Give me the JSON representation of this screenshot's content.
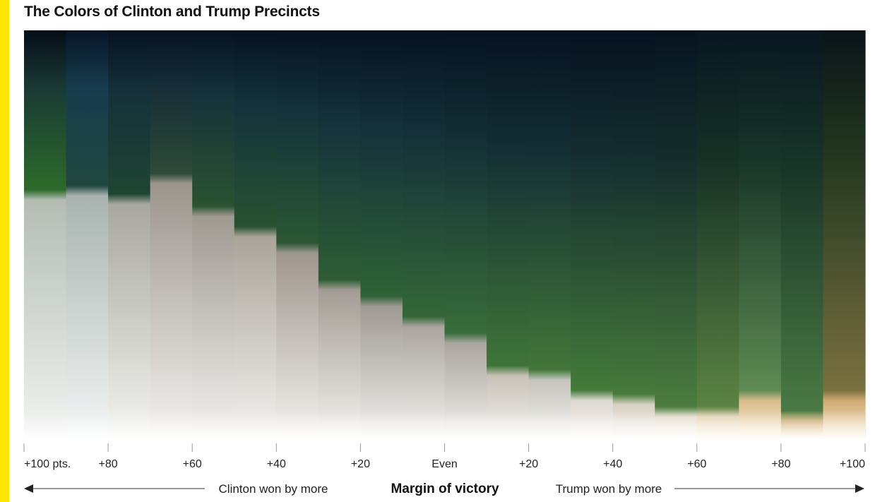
{
  "title": "The Colors of Clinton and Trump Precincts",
  "colors": {
    "accent_bar": "#ffe600",
    "axis": "#999999",
    "arrow": "#333333"
  },
  "chart_data": {
    "type": "heatmap",
    "title": "The Colors of Clinton and Trump Precincts",
    "xlabel": "Margin of victory",
    "direction_labels": {
      "left": "Clinton won by more",
      "right": "Trump won by more"
    },
    "ticks": [
      {
        "label": "+100 pts.",
        "margin": -100
      },
      {
        "label": "+80",
        "margin": -80
      },
      {
        "label": "+60",
        "margin": -60
      },
      {
        "label": "+40",
        "margin": -40
      },
      {
        "label": "+20",
        "margin": -20
      },
      {
        "label": "Even",
        "margin": 0
      },
      {
        "label": "+20",
        "margin": 20
      },
      {
        "label": "+40",
        "margin": 40
      },
      {
        "label": "+60",
        "margin": 60
      },
      {
        "label": "+80",
        "margin": 80
      },
      {
        "label": "+100",
        "margin": 100
      }
    ],
    "xlim": [
      -100,
      100
    ],
    "columns": [
      {
        "margin_from": -100,
        "margin_to": -90,
        "light_share": 0.59,
        "top": "#050d18",
        "sky": "#1a3a34",
        "vegetation": "#2d6a2a",
        "ground": "#b4bcb4",
        "base": "#f2f4f2"
      },
      {
        "margin_from": -90,
        "margin_to": -80,
        "light_share": 0.6,
        "top": "#071526",
        "sky": "#173c4e",
        "vegetation": "#20473e",
        "ground": "#a9b4b0",
        "base": "#f3f5f5"
      },
      {
        "margin_from": -80,
        "margin_to": -70,
        "light_share": 0.58,
        "top": "#061220",
        "sky": "#15303a",
        "vegetation": "#1f4432",
        "ground": "#a8a8a0",
        "base": "#f3f3f0"
      },
      {
        "margin_from": -70,
        "margin_to": -60,
        "light_share": 0.63,
        "top": "#061220",
        "sky": "#152c36",
        "vegetation": "#2e4a38",
        "ground": "#9c958e",
        "base": "#f3f2ef"
      },
      {
        "margin_from": -60,
        "margin_to": -50,
        "light_share": 0.55,
        "top": "#061220",
        "sky": "#15323a",
        "vegetation": "#2b5232",
        "ground": "#9f9a92",
        "base": "#f3f2ef"
      },
      {
        "margin_from": -50,
        "margin_to": -40,
        "light_share": 0.5,
        "top": "#061220",
        "sky": "#13313a",
        "vegetation": "#285232",
        "ground": "#aaa49a",
        "base": "#f3f2ef"
      },
      {
        "margin_from": -40,
        "margin_to": -30,
        "light_share": 0.46,
        "top": "#061220",
        "sky": "#13313a",
        "vegetation": "#2b5734",
        "ground": "#9f968e",
        "base": "#f3f2ef"
      },
      {
        "margin_from": -30,
        "margin_to": -20,
        "light_share": 0.37,
        "top": "#061220",
        "sky": "#14313a",
        "vegetation": "#2e5d35",
        "ground": "#a39c94",
        "base": "#f3f2ef"
      },
      {
        "margin_from": -20,
        "margin_to": -10,
        "light_share": 0.33,
        "top": "#061220",
        "sky": "#14303a",
        "vegetation": "#2f6236",
        "ground": "#9e9992",
        "base": "#f3f2ef"
      },
      {
        "margin_from": -10,
        "margin_to": 0,
        "light_share": 0.28,
        "top": "#061220",
        "sky": "#143038",
        "vegetation": "#346738",
        "ground": "#aaa59e",
        "base": "#f3f2ef"
      },
      {
        "margin_from": 0,
        "margin_to": 10,
        "light_share": 0.24,
        "top": "#061220",
        "sky": "#142f36",
        "vegetation": "#386c3a",
        "ground": "#aaa59e",
        "base": "#f3f2ef"
      },
      {
        "margin_from": 10,
        "margin_to": 20,
        "light_share": 0.16,
        "top": "#061220",
        "sky": "#142f34",
        "vegetation": "#3f7438",
        "ground": "#c8c2b8",
        "base": "#f3f2ef"
      },
      {
        "margin_from": 20,
        "margin_to": 30,
        "light_share": 0.15,
        "top": "#061220",
        "sky": "#142f34",
        "vegetation": "#427639",
        "ground": "#c4c4bc",
        "base": "#f3f2ef"
      },
      {
        "margin_from": 30,
        "margin_to": 40,
        "light_share": 0.1,
        "top": "#061220",
        "sky": "#152e30",
        "vegetation": "#447a3a",
        "ground": "#ddd8d0",
        "base": "#f5f3ef"
      },
      {
        "margin_from": 40,
        "margin_to": 50,
        "light_share": 0.09,
        "top": "#061220",
        "sky": "#152e2e",
        "vegetation": "#477a3c",
        "ground": "#d8d0c4",
        "base": "#f6f2ec"
      },
      {
        "margin_from": 50,
        "margin_to": 60,
        "light_share": 0.06,
        "top": "#071420",
        "sky": "#162e2c",
        "vegetation": "#4b7c3e",
        "ground": "#e4dccc",
        "base": "#f8f3ea"
      },
      {
        "margin_from": 60,
        "margin_to": 70,
        "light_share": 0.06,
        "top": "#081620",
        "sky": "#183226",
        "vegetation": "#5b8344",
        "ground": "#e2d2b2",
        "base": "#fbf2e0"
      },
      {
        "margin_from": 70,
        "margin_to": 80,
        "light_share": 0.1,
        "top": "#081620",
        "sky": "#183428",
        "vegetation": "#5e8a52",
        "ground": "#d8bc8a",
        "base": "#fbefd8"
      },
      {
        "margin_from": 80,
        "margin_to": 90,
        "light_share": 0.05,
        "top": "#081620",
        "sky": "#183428",
        "vegetation": "#4a7a44",
        "ground": "#c8a468",
        "base": "#fbefd4"
      },
      {
        "margin_from": 90,
        "margin_to": 100,
        "light_share": 0.1,
        "top": "#0a1418",
        "sky": "#243820",
        "vegetation": "#7a7040",
        "ground": "#cfa870",
        "base": "#fbf0d8"
      }
    ]
  }
}
